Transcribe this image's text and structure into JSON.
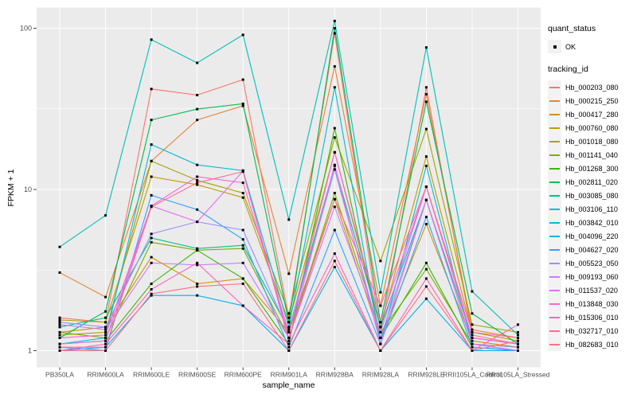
{
  "chart": {
    "y_title": "FPKM + 1",
    "x_title": "sample_name",
    "legend": {
      "quant_status_title": "quant_status",
      "quant_status_ok_label": "OK",
      "tracking_title": "tracking_id"
    }
  },
  "chart_data": {
    "type": "line",
    "xlabel": "sample_name",
    "ylabel": "FPKM + 1",
    "y_scale": "log10",
    "y_ticks": [
      1,
      10,
      100
    ],
    "y_minor_gridlines": [
      3.1623,
      31.623
    ],
    "ylim": [
      0.78,
      135
    ],
    "grid": "white on gray panel, major and minor horizontal, major vertical",
    "legend_position": "right",
    "panel_bg": "#EBEBEB",
    "grid_color": "#FFFFFF",
    "point_color": "#000000",
    "point_shape": "square",
    "axis_text_color": "#4D4D4D",
    "categories": [
      "PB350LA",
      "RRIM600LA",
      "RRIM600LE",
      "RRIM600SE",
      "RRIM600PE",
      "RRIM901LA",
      "RRIM928BA",
      "RRIM928LA",
      "RRIM928LE",
      "RRII105LA_Control",
      "RRII105LA_Stressed"
    ],
    "series": [
      {
        "name": "Hb_000203_080",
        "color": "#F8766D",
        "values": [
          1.6,
          1.5,
          42,
          38.5,
          48,
          1.6,
          93,
          1.3,
          43,
          1.25,
          1.1
        ]
      },
      {
        "name": "Hb_000215_250",
        "color": "#EA8331",
        "values": [
          3.05,
          2.15,
          15,
          27,
          33,
          3.0,
          58,
          1.9,
          39,
          1.35,
          1.2
        ]
      },
      {
        "name": "Hb_000417_280",
        "color": "#D89000",
        "values": [
          1.3,
          1.4,
          3.8,
          2.6,
          2.8,
          1.3,
          8.7,
          1.2,
          6.1,
          1.15,
          1.05
        ]
      },
      {
        "name": "Hb_000760_080",
        "color": "#C09B00",
        "values": [
          1.55,
          1.5,
          12,
          10.7,
          8.9,
          1.5,
          17,
          1.4,
          16,
          1.3,
          1.15
        ]
      },
      {
        "name": "Hb_001018_080",
        "color": "#A3A500",
        "values": [
          1.25,
          1.3,
          15,
          11.4,
          9.5,
          1.7,
          21,
          3.6,
          23.7,
          1.45,
          1.3
        ]
      },
      {
        "name": "Hb_001141_040",
        "color": "#7CAE00",
        "values": [
          1.3,
          1.2,
          4.7,
          4.2,
          4.3,
          1.2,
          9.5,
          1.3,
          3.2,
          1.1,
          1.05
        ]
      },
      {
        "name": "Hb_001268_300",
        "color": "#39B600",
        "values": [
          1.1,
          1.15,
          2.6,
          4.2,
          2.8,
          1.1,
          24,
          1.2,
          3.5,
          1.05,
          1.0
        ]
      },
      {
        "name": "Hb_002811_020",
        "color": "#00BB4E",
        "values": [
          1.2,
          1.75,
          27,
          31.5,
          34,
          1.5,
          100,
          1.5,
          35,
          1.7,
          1.1
        ]
      },
      {
        "name": "Hb_003085_080",
        "color": "#00C087",
        "values": [
          1.4,
          1.6,
          5.0,
          4.3,
          4.5,
          1.35,
          14,
          1.4,
          8.6,
          1.2,
          1.1
        ]
      },
      {
        "name": "Hb_003106_110",
        "color": "#00C0B8",
        "values": [
          4.4,
          6.9,
          85,
          61,
          91,
          6.5,
          111,
          2.3,
          76,
          2.33,
          1.25
        ]
      },
      {
        "name": "Hb_003842_010",
        "color": "#00BCD8",
        "values": [
          1.1,
          1.2,
          19,
          14.2,
          13.1,
          1.4,
          43,
          1.1,
          14,
          1.1,
          1.0
        ]
      },
      {
        "name": "Hb_004096_220",
        "color": "#00B0F6",
        "values": [
          1.0,
          1.05,
          2.2,
          2.2,
          1.9,
          1.0,
          3.3,
          1.0,
          2.1,
          1.0,
          1.0
        ]
      },
      {
        "name": "Hb_004627_020",
        "color": "#35A2FF",
        "values": [
          1.05,
          1.0,
          9.2,
          7.5,
          4.9,
          1.05,
          5.6,
          1.1,
          6.75,
          1.05,
          1.0
        ]
      },
      {
        "name": "Hb_005523_050",
        "color": "#9590FF",
        "values": [
          1.5,
          1.4,
          5.3,
          6.3,
          5.6,
          1.3,
          13.3,
          1.2,
          8.6,
          1.1,
          1.05
        ]
      },
      {
        "name": "Hb_009193_060",
        "color": "#C77CFF",
        "values": [
          1.45,
          1.35,
          3.5,
          3.4,
          3.5,
          1.2,
          7.8,
          1.3,
          10.4,
          1.2,
          1.1
        ]
      },
      {
        "name": "Hb_011537_020",
        "color": "#E76BF3",
        "values": [
          1.1,
          1.15,
          7.9,
          6.3,
          13,
          1.15,
          14.2,
          1.1,
          8.6,
          1.1,
          1.0
        ]
      },
      {
        "name": "Hb_013848_030",
        "color": "#FA62DB",
        "values": [
          1.2,
          1.25,
          7.9,
          12,
          11,
          1.3,
          17,
          1.5,
          10.4,
          1.2,
          1.1
        ]
      },
      {
        "name": "Hb_015306_010",
        "color": "#FF62BC",
        "values": [
          1.0,
          1.1,
          2.4,
          3.5,
          1.9,
          1.1,
          4.0,
          1.0,
          2.8,
          1.0,
          1.45
        ]
      },
      {
        "name": "Hb_032717_010",
        "color": "#FF6A98",
        "values": [
          1.05,
          1.05,
          7.8,
          11,
          12.9,
          1.2,
          8.7,
          1.9,
          10.4,
          1.3,
          1.2
        ]
      },
      {
        "name": "Hb_082683_010",
        "color": "#FC717F",
        "values": [
          1.0,
          1.0,
          2.25,
          2.5,
          2.6,
          1.0,
          3.6,
          1.0,
          2.5,
          1.0,
          1.15
        ]
      }
    ]
  }
}
